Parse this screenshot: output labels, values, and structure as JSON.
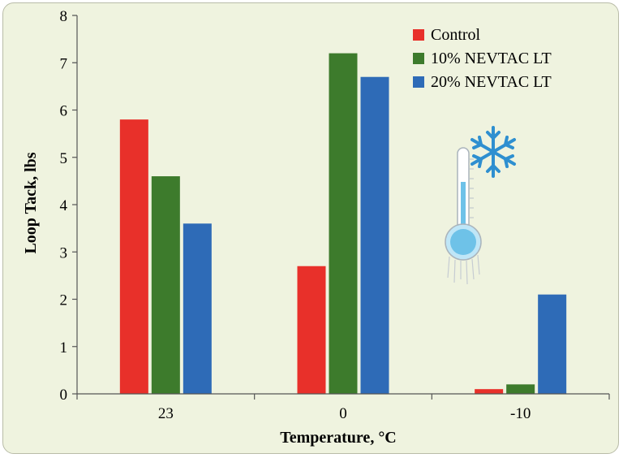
{
  "chart_data": {
    "type": "bar",
    "title": "",
    "xlabel": "Temperature, °C",
    "ylabel": "Loop Tack, lbs",
    "categories": [
      "23",
      "0",
      "-10"
    ],
    "yticks": [
      "0",
      "1",
      "2",
      "3",
      "4",
      "5",
      "6",
      "7",
      "8"
    ],
    "ylim": [
      0,
      8
    ],
    "grid": false,
    "legend_position": "top-right",
    "series": [
      {
        "name": "Control",
        "color": "#e8302a",
        "values": [
          5.8,
          2.7,
          0.1
        ]
      },
      {
        "name": "10% NEVTAC LT",
        "color": "#3d7b2c",
        "values": [
          4.6,
          7.2,
          0.2
        ]
      },
      {
        "name": "20% NEVTAC LT",
        "color": "#2e6bb7",
        "values": [
          3.6,
          6.7,
          2.1
        ]
      }
    ]
  },
  "decorations": {
    "thermometer_icon": "thermometer-icon",
    "snowflake_icon": "snowflake-icon",
    "thermometer_color": "#6ec2e8"
  }
}
